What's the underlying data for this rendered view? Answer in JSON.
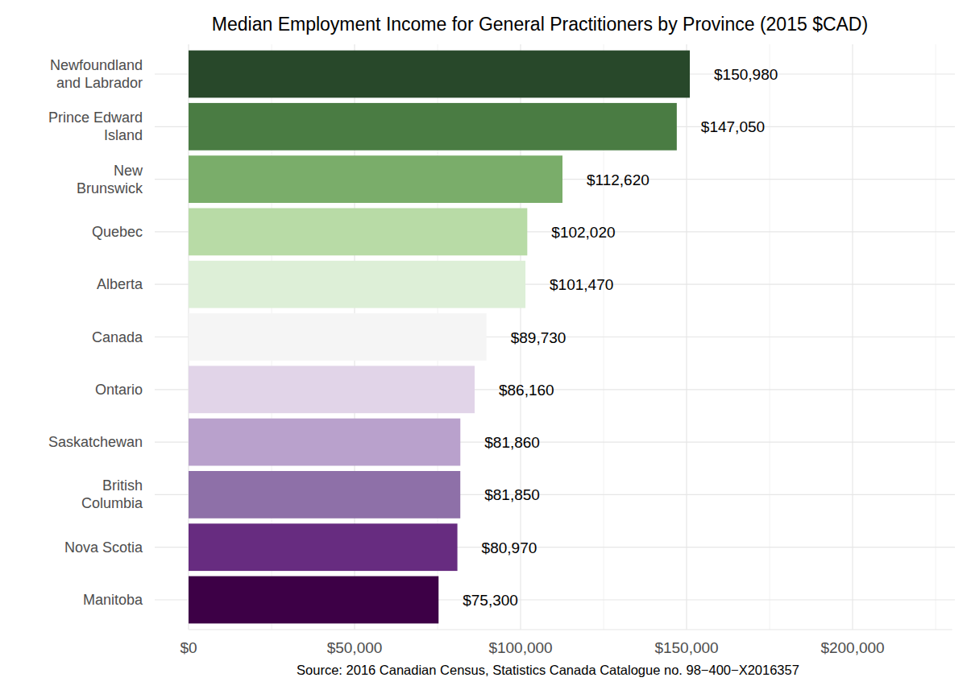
{
  "chart_data": {
    "type": "bar",
    "orientation": "horizontal",
    "title": "Median Employment Income for General Practitioners by Province (2015 $CAD)",
    "caption": "Source: 2016 Canadian Census, Statistics Canada Catalogue no. 98−400−X2016357",
    "categories": [
      "Newfoundland and Labrador",
      "Prince Edward Island",
      "New Brunswick",
      "Quebec",
      "Alberta",
      "Canada",
      "Ontario",
      "Saskatchewan",
      "British Columbia",
      "Nova Scotia",
      "Manitoba"
    ],
    "values": [
      150980,
      147050,
      112620,
      102020,
      101470,
      89730,
      86160,
      81860,
      81850,
      80970,
      75300
    ],
    "value_labels": [
      "$150,980",
      "$147,050",
      "$112,620",
      "$102,020",
      "$101,470",
      "$89,730",
      "$86,160",
      "$81,860",
      "$81,850",
      "$80,970",
      "$75,300"
    ],
    "colors": [
      "#28482a",
      "#4a7c43",
      "#7aad6a",
      "#b8dba6",
      "#ddefd7",
      "#f5f5f5",
      "#e1d4e8",
      "#b9a1cc",
      "#8e70a8",
      "#672c80",
      "#3d0046"
    ],
    "xlim": [
      0,
      230000
    ],
    "xticks": [
      {
        "value": 0,
        "label": "$0"
      },
      {
        "value": 50000,
        "label": "$50,000"
      },
      {
        "value": 100000,
        "label": "$100,000"
      },
      {
        "value": 150000,
        "label": "$150,000"
      },
      {
        "value": 200000,
        "label": "$200,000"
      }
    ],
    "grid": true,
    "data_labels": true
  }
}
